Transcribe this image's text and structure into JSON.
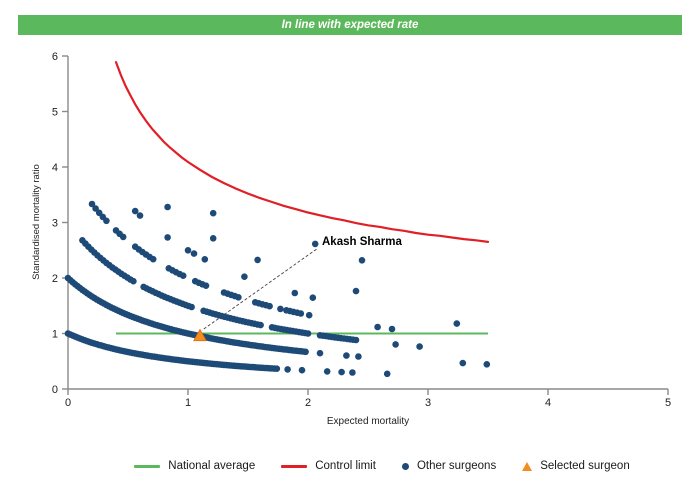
{
  "header": {
    "title": "In line with expected rate",
    "background_color": "#5cb85c",
    "text_color": "#ffffff"
  },
  "chart_data": {
    "type": "scatter",
    "title": "In line with expected rate",
    "xlabel": "Expected mortality",
    "ylabel": "Standardised mortality ratio",
    "xlim": [
      0,
      5
    ],
    "ylim": [
      0,
      6
    ],
    "x_ticks": [
      0,
      1,
      2,
      3,
      4,
      5
    ],
    "y_ticks": [
      0,
      1,
      2,
      3,
      4,
      5,
      6
    ],
    "grid": false,
    "axis_color": "#8a8a8a",
    "tick_label_color": "#222222",
    "national_average": {
      "y": 1,
      "x_start": 0.4,
      "x_end": 3.5,
      "color": "#5cb85c"
    },
    "control_limit": {
      "color": "#e01f26",
      "formula": "SMR = 1 + 3.09/sqrt(expected)",
      "points": [
        [
          0.4,
          5.89
        ],
        [
          0.44,
          5.66
        ],
        [
          0.48,
          5.46
        ],
        [
          0.52,
          5.29
        ],
        [
          0.56,
          5.13
        ],
        [
          0.6,
          4.99
        ],
        [
          0.65,
          4.83
        ],
        [
          0.7,
          4.69
        ],
        [
          0.75,
          4.57
        ],
        [
          0.8,
          4.45
        ],
        [
          0.85,
          4.35
        ],
        [
          0.9,
          4.26
        ],
        [
          0.95,
          4.17
        ],
        [
          1.0,
          4.09
        ],
        [
          1.1,
          3.95
        ],
        [
          1.2,
          3.82
        ],
        [
          1.3,
          3.71
        ],
        [
          1.4,
          3.61
        ],
        [
          1.5,
          3.52
        ],
        [
          1.6,
          3.44
        ],
        [
          1.7,
          3.37
        ],
        [
          1.8,
          3.3
        ],
        [
          1.9,
          3.24
        ],
        [
          2.0,
          3.18
        ],
        [
          2.1,
          3.13
        ],
        [
          2.2,
          3.08
        ],
        [
          2.3,
          3.04
        ],
        [
          2.4,
          2.99
        ],
        [
          2.5,
          2.95
        ],
        [
          2.6,
          2.92
        ],
        [
          2.7,
          2.88
        ],
        [
          2.8,
          2.85
        ],
        [
          2.9,
          2.81
        ],
        [
          3.0,
          2.78
        ],
        [
          3.1,
          2.76
        ],
        [
          3.2,
          2.73
        ],
        [
          3.3,
          2.7
        ],
        [
          3.4,
          2.68
        ],
        [
          3.5,
          2.65
        ]
      ]
    },
    "other_surgeons": {
      "color": "#1e4a78",
      "marker": "circle",
      "marker_radius_px": 3.3,
      "smr_formula": "SMR = deaths / (1 + expected)",
      "bands": [
        {
          "deaths": 1,
          "segments": [
            [
              0.0,
              1.74,
              0.02
            ]
          ],
          "extra_x": [
            1.83,
            1.95,
            2.16,
            2.28,
            2.37,
            2.66
          ]
        },
        {
          "deaths": 2,
          "segments": [
            [
              0.0,
              1.98,
              0.02
            ]
          ],
          "extra_x": [
            2.1,
            2.32,
            2.42,
            3.29,
            3.49
          ]
        },
        {
          "deaths": 3,
          "segments": [
            [
              0.12,
              0.55,
              0.025
            ],
            [
              0.63,
              1.05,
              0.025
            ],
            [
              1.13,
              1.62,
              0.025
            ],
            [
              1.7,
              2.0,
              0.025
            ],
            [
              2.1,
              2.42,
              0.025
            ]
          ],
          "extra_x": [
            2.73,
            2.93
          ]
        },
        {
          "deaths": 4,
          "segments": [
            [
              0.2,
              0.34,
              0.03
            ],
            [
              0.4,
              0.47,
              0.03
            ],
            [
              0.56,
              0.72,
              0.03
            ],
            [
              0.84,
              0.96,
              0.03
            ],
            [
              1.06,
              1.16,
              0.03
            ],
            [
              1.3,
              1.44,
              0.03
            ],
            [
              1.56,
              1.7,
              0.03
            ],
            [
              1.82,
              1.94,
              0.03
            ]
          ],
          "extra_x": [
            1.77,
            2.01,
            2.58,
            2.7
          ]
        },
        {
          "deaths": 5,
          "segments": [],
          "extra_x": [
            0.56,
            0.6,
            0.83,
            1.0,
            1.05,
            1.14,
            1.47,
            1.89,
            2.04,
            3.24
          ]
        },
        {
          "deaths": 6,
          "segments": [],
          "extra_x": [
            0.83,
            1.21,
            1.58,
            2.4
          ]
        },
        {
          "deaths": 7,
          "segments": [],
          "extra_x": [
            1.21
          ]
        },
        {
          "deaths": 8,
          "segments": [],
          "extra_x": [
            2.06,
            2.45
          ]
        }
      ]
    },
    "selected_surgeon": {
      "label": "Akash Sharma",
      "x": 1.1,
      "y": 0.95,
      "color": "#f68b1f",
      "marker": "triangle",
      "label_x": 2.12,
      "label_y": 2.68
    }
  },
  "legend": {
    "items": [
      {
        "label": "National average",
        "swatch": "green-line"
      },
      {
        "label": "Control limit",
        "swatch": "red-line"
      },
      {
        "label": "Other surgeons",
        "swatch": "blue-dot"
      },
      {
        "label": "Selected surgeon",
        "swatch": "orange-triangle"
      }
    ]
  }
}
